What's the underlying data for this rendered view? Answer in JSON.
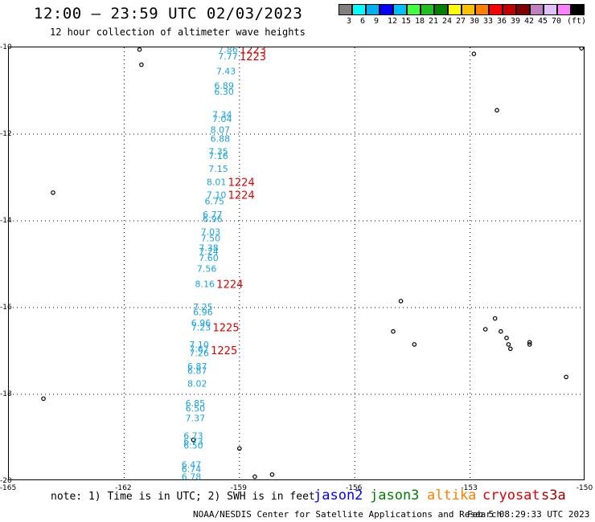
{
  "header": {
    "title": "12:00 — 23:59 UTC 02/03/2023",
    "subtitle": "12 hour collection of altimeter wave heights"
  },
  "scale": {
    "unit": "(ft)",
    "colors": [
      "#808080",
      "#00ffff",
      "#00b0f0",
      "#0000ff",
      "#00c0ff",
      "#40ff40",
      "#20c020",
      "#008000",
      "#ffff00",
      "#ffc000",
      "#ff8000",
      "#ff0000",
      "#c00000",
      "#800000",
      "#c080c0",
      "#e0c0ff",
      "#ff80ff",
      "#000000"
    ],
    "labels": [
      "3",
      "6",
      "9",
      "12",
      "15",
      "18",
      "21",
      "24",
      "27",
      "30",
      "33",
      "36",
      "39",
      "42",
      "45",
      "70"
    ]
  },
  "map": {
    "lat_range": [
      -20,
      -10
    ],
    "lon_range": [
      -165,
      -150
    ],
    "y_ticks": [
      "-10",
      "-12",
      "-14",
      "-16",
      "-18",
      "-20"
    ],
    "x_ticks": [
      "-165",
      "-162",
      "-159",
      "-156",
      "-153",
      "-150"
    ]
  },
  "track": {
    "color": "#1aa3e0",
    "points": [
      {
        "lon": -159.3,
        "lat": -10.05,
        "value": "7.86"
      },
      {
        "lon": -159.3,
        "lat": -10.2,
        "value": "7.77"
      },
      {
        "lon": -159.35,
        "lat": -10.55,
        "value": "7.43"
      },
      {
        "lon": -159.4,
        "lat": -10.88,
        "value": "6.89"
      },
      {
        "lon": -159.4,
        "lat": -11.02,
        "value": "6.30"
      },
      {
        "lon": -159.45,
        "lat": -11.55,
        "value": "7.34"
      },
      {
        "lon": -159.45,
        "lat": -11.65,
        "value": "7.04"
      },
      {
        "lon": -159.5,
        "lat": -11.9,
        "value": "8.07"
      },
      {
        "lon": -159.5,
        "lat": -12.1,
        "value": "6.88"
      },
      {
        "lon": -159.55,
        "lat": -12.4,
        "value": "7.35"
      },
      {
        "lon": -159.55,
        "lat": -12.5,
        "value": "7.16"
      },
      {
        "lon": -159.55,
        "lat": -12.8,
        "value": "7.15"
      },
      {
        "lon": -159.6,
        "lat": -13.1,
        "value": "8.01"
      },
      {
        "lon": -159.6,
        "lat": -13.4,
        "value": "7.10"
      },
      {
        "lon": -159.65,
        "lat": -13.55,
        "value": "6.75"
      },
      {
        "lon": -159.7,
        "lat": -13.85,
        "value": "6.77"
      },
      {
        "lon": -159.7,
        "lat": -13.95,
        "value": "6.96"
      },
      {
        "lon": -159.75,
        "lat": -14.25,
        "value": "7.03"
      },
      {
        "lon": -159.75,
        "lat": -14.4,
        "value": "7.50"
      },
      {
        "lon": -159.8,
        "lat": -14.62,
        "value": "7.38"
      },
      {
        "lon": -159.8,
        "lat": -14.7,
        "value": "7.24"
      },
      {
        "lon": -159.8,
        "lat": -14.85,
        "value": "7.60"
      },
      {
        "lon": -159.85,
        "lat": -15.1,
        "value": "7.56"
      },
      {
        "lon": -159.9,
        "lat": -15.45,
        "value": "8.16"
      },
      {
        "lon": -159.95,
        "lat": -15.98,
        "value": "7.25"
      },
      {
        "lon": -159.95,
        "lat": -16.1,
        "value": "6.96"
      },
      {
        "lon": -160.0,
        "lat": -16.35,
        "value": "6.96"
      },
      {
        "lon": -160.0,
        "lat": -16.45,
        "value": "7.23"
      },
      {
        "lon": -160.05,
        "lat": -16.85,
        "value": "7.10"
      },
      {
        "lon": -160.05,
        "lat": -16.95,
        "value": "7.67"
      },
      {
        "lon": -160.05,
        "lat": -17.05,
        "value": "7.26"
      },
      {
        "lon": -160.1,
        "lat": -17.35,
        "value": "6.87"
      },
      {
        "lon": -160.1,
        "lat": -17.45,
        "value": "6.87"
      },
      {
        "lon": -160.1,
        "lat": -17.75,
        "value": "8.02"
      },
      {
        "lon": -160.15,
        "lat": -18.2,
        "value": "6.85"
      },
      {
        "lon": -160.15,
        "lat": -18.32,
        "value": "6.50"
      },
      {
        "lon": -160.15,
        "lat": -18.55,
        "value": "7.37"
      },
      {
        "lon": -160.2,
        "lat": -18.95,
        "value": "6.73"
      },
      {
        "lon": -160.2,
        "lat": -19.08,
        "value": "6.73"
      },
      {
        "lon": -160.2,
        "lat": -19.18,
        "value": "6.50"
      },
      {
        "lon": -160.25,
        "lat": -19.62,
        "value": "6.47"
      },
      {
        "lon": -160.25,
        "lat": -19.72,
        "value": "6.74"
      },
      {
        "lon": -160.25,
        "lat": -19.9,
        "value": "6.78"
      }
    ]
  },
  "times": {
    "color": "#dd0000",
    "labels": [
      {
        "lon": -158.65,
        "lat": -10.05,
        "value": "1223"
      },
      {
        "lon": -158.65,
        "lat": -10.2,
        "value": "1223"
      },
      {
        "lon": -158.95,
        "lat": -13.1,
        "value": "1224"
      },
      {
        "lon": -158.95,
        "lat": -13.4,
        "value": "1224"
      },
      {
        "lon": -159.25,
        "lat": -15.45,
        "value": "1224"
      },
      {
        "lon": -159.35,
        "lat": -16.45,
        "value": "1225"
      },
      {
        "lon": -159.4,
        "lat": -16.98,
        "value": "1225"
      }
    ]
  },
  "islands": [
    {
      "lon": -161.6,
      "lat": -10.05
    },
    {
      "lon": -161.55,
      "lat": -10.4
    },
    {
      "lon": -163.85,
      "lat": -13.35
    },
    {
      "lon": -164.1,
      "lat": -18.1
    },
    {
      "lon": -160.2,
      "lat": -19.05
    },
    {
      "lon": -159.0,
      "lat": -19.25
    },
    {
      "lon": -158.6,
      "lat": -19.9
    },
    {
      "lon": -158.4,
      "lat": -20.05
    },
    {
      "lon": -158.15,
      "lat": -19.85
    },
    {
      "lon": -150.1,
      "lat": -10.02
    },
    {
      "lon": -152.9,
      "lat": -10.15
    },
    {
      "lon": -152.3,
      "lat": -11.45
    },
    {
      "lon": -154.8,
      "lat": -15.85
    },
    {
      "lon": -155.0,
      "lat": -16.55
    },
    {
      "lon": -154.45,
      "lat": -16.85
    },
    {
      "lon": -152.35,
      "lat": -16.25
    },
    {
      "lon": -152.6,
      "lat": -16.5
    },
    {
      "lon": -152.2,
      "lat": -16.55
    },
    {
      "lon": -152.05,
      "lat": -16.7
    },
    {
      "lon": -152.0,
      "lat": -16.85
    },
    {
      "lon": -151.95,
      "lat": -16.95
    },
    {
      "lon": -151.45,
      "lat": -16.8
    },
    {
      "lon": -151.45,
      "lat": -16.85
    },
    {
      "lon": -150.5,
      "lat": -17.6
    }
  ],
  "note": "note: 1) Time is in UTC; 2) SWH is in feet",
  "legend": [
    {
      "name": "jason2",
      "color": "#0000ff"
    },
    {
      "name": "jason3",
      "color": "#008000"
    },
    {
      "name": "altika",
      "color": "#ff8000"
    },
    {
      "name": "cryosat",
      "color": "#dd0000"
    },
    {
      "name": "s3a",
      "color": "#a00000"
    }
  ],
  "footer": {
    "credit": "NOAA/NESDIS Center for Satellite Applications and Research",
    "timestamp": "Feb  5 08:29:33 UTC 2023"
  }
}
